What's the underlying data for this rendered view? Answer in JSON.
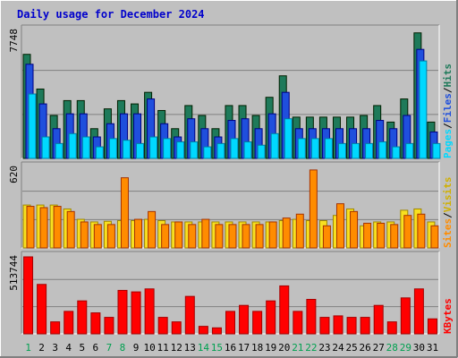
{
  "chart_data": {
    "type": "bar",
    "title": "Daily usage for December 2024",
    "categories": [
      "1",
      "2",
      "3",
      "4",
      "5",
      "6",
      "7",
      "8",
      "9",
      "10",
      "11",
      "12",
      "13",
      "14",
      "15",
      "16",
      "17",
      "18",
      "19",
      "20",
      "21",
      "22",
      "23",
      "24",
      "25",
      "26",
      "27",
      "28",
      "29",
      "30",
      "31"
    ],
    "weekend_days": [
      "1",
      "7",
      "8",
      "14",
      "15",
      "21",
      "22",
      "28",
      "29"
    ],
    "panels": [
      {
        "name": "requests",
        "max_label": "7748",
        "ymax": 7748,
        "axis_labels": [
          "Pages",
          "Files",
          "Hits"
        ],
        "series": [
          {
            "name": "Hits",
            "color": "#1e7a5a",
            "values": [
              6300,
              4200,
              2600,
              3500,
              3500,
              1800,
              3000,
              3500,
              3300,
              4000,
              2900,
              1800,
              3200,
              2600,
              1800,
              3200,
              3200,
              2600,
              3700,
              5000,
              2500,
              2500,
              2500,
              2500,
              2500,
              2600,
              3200,
              2200,
              3600,
              7600,
              2200
            ]
          },
          {
            "name": "Files",
            "color": "#1f4fdd",
            "values": [
              5700,
              3300,
              1800,
              2700,
              2700,
              1300,
              2100,
              2700,
              2700,
              3600,
              2100,
              1300,
              2400,
              1800,
              1300,
              2300,
              2400,
              1800,
              2700,
              4000,
              1800,
              1800,
              1800,
              1800,
              1800,
              1800,
              2300,
              1800,
              2600,
              6600,
              1600
            ]
          },
          {
            "name": "Pages",
            "color": "#00d8ff",
            "values": [
              3900,
              1300,
              900,
              1500,
              1300,
              700,
              1200,
              1100,
              900,
              1300,
              1200,
              1000,
              1000,
              700,
              900,
              1200,
              1000,
              800,
              1500,
              2400,
              1200,
              1200,
              1200,
              900,
              900,
              900,
              1000,
              700,
              900,
              5900,
              900
            ]
          }
        ]
      },
      {
        "name": "visitors",
        "max_label": "620",
        "ymax": 620,
        "axis_labels": [
          "Sites",
          "Visits"
        ],
        "series": [
          {
            "name": "Visits",
            "color": "#f8e020",
            "values": [
              330,
              330,
              330,
              300,
              220,
              200,
              205,
              210,
              210,
              220,
              210,
              200,
              200,
              200,
              200,
              200,
              200,
              200,
              200,
              210,
              220,
              210,
              210,
              250,
              300,
              170,
              200,
              200,
              290,
              300,
              200
            ]
          },
          {
            "name": "Sites",
            "color": "#ff8c00",
            "values": [
              320,
              310,
              320,
              280,
              200,
              180,
              180,
              540,
              220,
              280,
              180,
              200,
              180,
              220,
              180,
              180,
              180,
              180,
              200,
              230,
              260,
              600,
              170,
              340,
              280,
              190,
              190,
              180,
              250,
              260,
              170
            ]
          }
        ]
      },
      {
        "name": "kbytes",
        "max_label": "513744",
        "ymax": 513744,
        "axis_labels": [
          "KBytes"
        ],
        "series": [
          {
            "name": "KBytes",
            "color": "#ff0000",
            "values": [
              513744,
              330000,
              80000,
              150000,
              220000,
              140000,
              110000,
              290000,
              280000,
              300000,
              110000,
              80000,
              250000,
              50000,
              40000,
              150000,
              190000,
              150000,
              220000,
              320000,
              150000,
              230000,
              110000,
              120000,
              110000,
              110000,
              190000,
              80000,
              240000,
              300000,
              100000
            ]
          }
        ]
      }
    ],
    "grid": true,
    "legend": "right-vertical"
  }
}
